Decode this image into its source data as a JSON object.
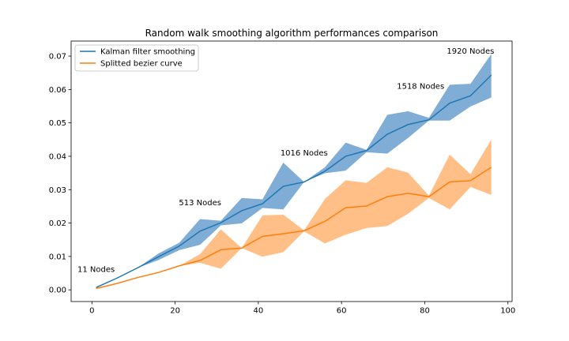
{
  "chart_data": {
    "type": "line",
    "title": "Random walk smoothing algorithm performances comparison",
    "xlabel": "",
    "ylabel": "",
    "xlim": [
      -5,
      101
    ],
    "ylim": [
      -0.0035,
      0.0745
    ],
    "xticks": [
      0,
      20,
      40,
      60,
      80,
      100
    ],
    "yticks": [
      0.0,
      0.01,
      0.02,
      0.03,
      0.04,
      0.05,
      0.06,
      0.07
    ],
    "ytick_labels": [
      "0.00",
      "0.01",
      "0.02",
      "0.03",
      "0.04",
      "0.05",
      "0.06",
      "0.07"
    ],
    "grid": false,
    "legend_position": "upper-left",
    "series": [
      {
        "name": "Kalman filter smoothing",
        "color": "#1f77b4",
        "band_color": "#7fadd5",
        "x": [
          1,
          6,
          11,
          16,
          21,
          26,
          31,
          36,
          41,
          46,
          51,
          56,
          61,
          66,
          71,
          76,
          81,
          86,
          91,
          96
        ],
        "mean": [
          0.0007,
          0.0035,
          0.0066,
          0.0099,
          0.0131,
          0.0176,
          0.0201,
          0.0237,
          0.0258,
          0.031,
          0.0323,
          0.0355,
          0.04,
          0.0417,
          0.0466,
          0.0495,
          0.0509,
          0.0559,
          0.0581,
          0.0643
        ],
        "upper": [
          0.0007,
          0.0035,
          0.0066,
          0.0109,
          0.0141,
          0.0212,
          0.0207,
          0.0275,
          0.0271,
          0.0381,
          0.0323,
          0.0367,
          0.0441,
          0.0419,
          0.0524,
          0.0535,
          0.0515,
          0.0614,
          0.0617,
          0.0706
        ],
        "lower": [
          0.0007,
          0.0035,
          0.0066,
          0.0089,
          0.0119,
          0.0135,
          0.0193,
          0.0199,
          0.0245,
          0.0241,
          0.0323,
          0.0349,
          0.0357,
          0.0412,
          0.0408,
          0.0455,
          0.0507,
          0.0507,
          0.0549,
          0.0576
        ]
      },
      {
        "name": "Splitted bezier curve",
        "color": "#ff7f0e",
        "band_color": "#ffbf86",
        "x": [
          1,
          6,
          11,
          16,
          21,
          26,
          31,
          36,
          41,
          46,
          51,
          56,
          61,
          66,
          71,
          76,
          81,
          86,
          91,
          96
        ],
        "mean": [
          0.0004,
          0.0019,
          0.0037,
          0.0052,
          0.0072,
          0.0088,
          0.012,
          0.0125,
          0.016,
          0.0168,
          0.0177,
          0.0205,
          0.0246,
          0.0251,
          0.0279,
          0.0289,
          0.0279,
          0.0323,
          0.0327,
          0.0367
        ],
        "upper": [
          0.0004,
          0.0019,
          0.0037,
          0.0052,
          0.0072,
          0.0107,
          0.0181,
          0.0125,
          0.0223,
          0.0225,
          0.0178,
          0.0272,
          0.0328,
          0.032,
          0.0367,
          0.0351,
          0.0282,
          0.0405,
          0.0346,
          0.045
        ],
        "lower": [
          0.0004,
          0.0019,
          0.0037,
          0.0052,
          0.0072,
          0.0081,
          0.0063,
          0.0125,
          0.0099,
          0.0113,
          0.0175,
          0.0139,
          0.0165,
          0.0185,
          0.0191,
          0.0228,
          0.0275,
          0.0241,
          0.0308,
          0.0284
        ]
      }
    ],
    "annotations": [
      {
        "text": "11 Nodes",
        "x": 1,
        "y": 0.0054
      },
      {
        "text": "513 Nodes",
        "x": 26,
        "y": 0.0253
      },
      {
        "text": "1016 Nodes",
        "x": 51,
        "y": 0.0402
      },
      {
        "text": "1518 Nodes",
        "x": 79,
        "y": 0.0602
      },
      {
        "text": "1920 Nodes",
        "x": 91,
        "y": 0.0707
      }
    ]
  }
}
